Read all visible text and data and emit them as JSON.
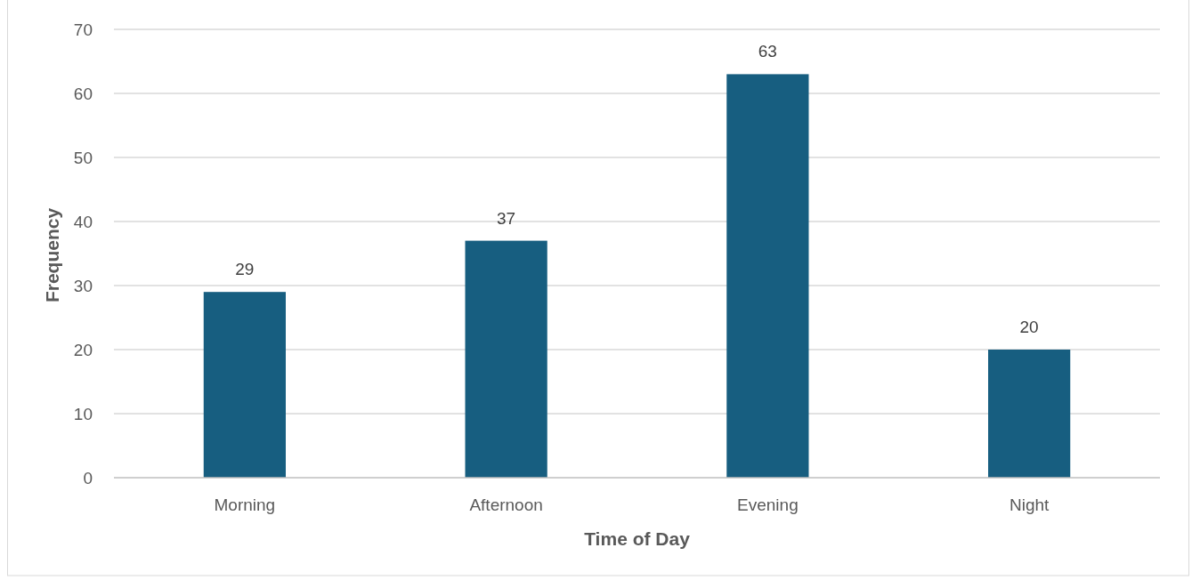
{
  "chart_data": {
    "type": "bar",
    "xlabel": "Time of Day",
    "ylabel": "Frequency",
    "categories": [
      "Morning",
      "Afternoon",
      "Evening",
      "Night"
    ],
    "values": [
      29,
      37,
      63,
      20
    ],
    "color": "#175e80",
    "ylim": [
      0,
      70
    ],
    "yticks": [
      0,
      10,
      20,
      30,
      40,
      50,
      60,
      70
    ],
    "grid": "y",
    "data_labels": true
  }
}
